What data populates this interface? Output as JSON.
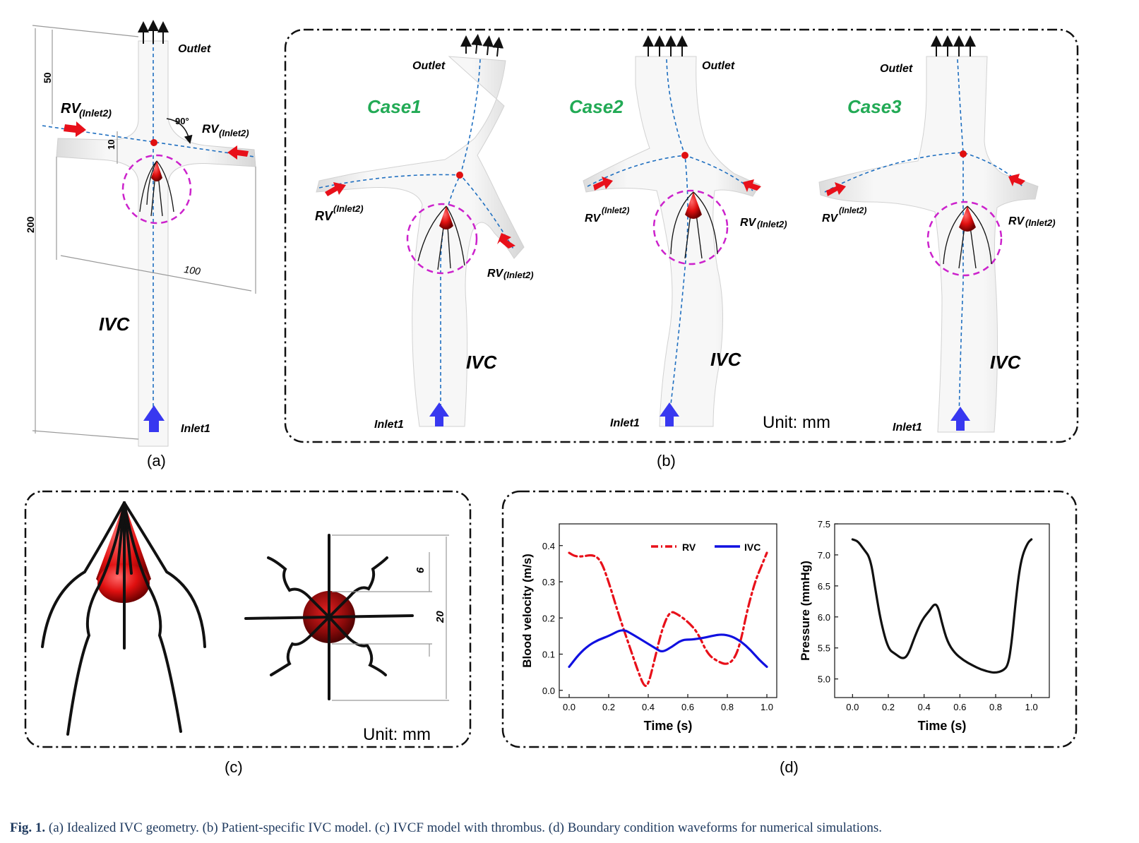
{
  "panel_a": {
    "letter": "(a)",
    "outlet": "Outlet",
    "rv_left": "RV",
    "rv_left_sub": "(Inlet2)",
    "rv_right": "RV",
    "rv_right_sub": "(Inlet2)",
    "ivc": "IVC",
    "inlet1": "Inlet1",
    "dim_50": "50",
    "dim_10": "10",
    "dim_200": "200",
    "dim_100": "100",
    "angle": "90°"
  },
  "panel_b": {
    "letter": "(b)",
    "unit": "Unit: mm",
    "cases": [
      {
        "name": "Case1",
        "outlet": "Outlet",
        "rv": "RV",
        "rv_sub": "(Inlet2)",
        "ivc": "IVC",
        "inlet1": "Inlet1"
      },
      {
        "name": "Case2",
        "outlet": "Outlet",
        "rv": "RV",
        "rv_sub": "(Inlet2)",
        "ivc": "IVC",
        "inlet1": "Inlet1"
      },
      {
        "name": "Case3",
        "outlet": "Outlet",
        "rv": "RV",
        "rv_sub": "(Inlet2)",
        "ivc": "IVC",
        "inlet1": "Inlet1"
      }
    ]
  },
  "panel_c": {
    "letter": "(c)",
    "unit": "Unit: mm",
    "dim_6": "6",
    "dim_20": "20"
  },
  "panel_d": {
    "letter": "(d)"
  },
  "chart_data": [
    {
      "type": "line",
      "xlabel": "Time (s)",
      "ylabel": "Blood velocity (m/s)",
      "xlim": [
        -0.05,
        1.05
      ],
      "ylim": [
        -0.02,
        0.46
      ],
      "xticks": [
        "0.0",
        "0.2",
        "0.4",
        "0.6",
        "0.8",
        "1.0"
      ],
      "yticks": [
        "0.0",
        "0.1",
        "0.2",
        "0.3",
        "0.4"
      ],
      "legend": "top-right",
      "series": [
        {
          "name": "RV",
          "color": "#e8101a",
          "style": "dash-dot",
          "x": [
            0.0,
            0.03,
            0.07,
            0.12,
            0.16,
            0.2,
            0.25,
            0.3,
            0.35,
            0.38,
            0.4,
            0.43,
            0.47,
            0.51,
            0.55,
            0.6,
            0.65,
            0.7,
            0.75,
            0.8,
            0.84,
            0.87,
            0.9,
            0.94,
            0.97,
            1.0
          ],
          "y": [
            0.38,
            0.37,
            0.37,
            0.375,
            0.36,
            0.3,
            0.21,
            0.13,
            0.05,
            0.01,
            0.015,
            0.08,
            0.17,
            0.22,
            0.21,
            0.19,
            0.16,
            0.1,
            0.08,
            0.07,
            0.09,
            0.14,
            0.22,
            0.3,
            0.34,
            0.38
          ]
        },
        {
          "name": "IVC",
          "color": "#1010e0",
          "style": "solid",
          "x": [
            0.0,
            0.05,
            0.1,
            0.15,
            0.2,
            0.27,
            0.32,
            0.38,
            0.44,
            0.47,
            0.52,
            0.57,
            0.62,
            0.68,
            0.72,
            0.77,
            0.82,
            0.87,
            0.92,
            0.96,
            1.0
          ],
          "y": [
            0.065,
            0.1,
            0.125,
            0.14,
            0.15,
            0.17,
            0.155,
            0.135,
            0.115,
            0.105,
            0.12,
            0.14,
            0.14,
            0.145,
            0.15,
            0.155,
            0.15,
            0.135,
            0.11,
            0.085,
            0.065
          ]
        }
      ]
    },
    {
      "type": "line",
      "xlabel": "Time (s)",
      "ylabel": "Pressure (mmHg)",
      "xlim": [
        -0.1,
        1.1
      ],
      "ylim": [
        4.7,
        7.5
      ],
      "xticks": [
        "0.0",
        "0.2",
        "0.4",
        "0.6",
        "0.8",
        "1.0"
      ],
      "yticks": [
        "5.0",
        "5.5",
        "6.0",
        "6.5",
        "7.0",
        "7.5"
      ],
      "series": [
        {
          "name": "",
          "color": "#111111",
          "style": "solid",
          "x": [
            0.0,
            0.03,
            0.06,
            0.1,
            0.13,
            0.16,
            0.2,
            0.24,
            0.28,
            0.31,
            0.35,
            0.39,
            0.43,
            0.46,
            0.48,
            0.5,
            0.53,
            0.57,
            0.62,
            0.67,
            0.72,
            0.77,
            0.8,
            0.84,
            0.87,
            0.89,
            0.91,
            0.93,
            0.95,
            0.98,
            1.0
          ],
          "y": [
            7.25,
            7.22,
            7.1,
            6.95,
            6.4,
            5.9,
            5.48,
            5.4,
            5.32,
            5.38,
            5.7,
            5.96,
            6.1,
            6.22,
            6.15,
            5.9,
            5.6,
            5.42,
            5.3,
            5.22,
            5.15,
            5.11,
            5.1,
            5.13,
            5.22,
            5.6,
            6.2,
            6.7,
            7.0,
            7.2,
            7.25
          ]
        }
      ]
    }
  ],
  "caption": {
    "label": "Fig. 1.",
    "text": "(a) Idealized IVC geometry. (b) Patient-specific IVC model. (c) IVCF model with thrombus. (d) Boundary condition waveforms for numerical simulations."
  }
}
